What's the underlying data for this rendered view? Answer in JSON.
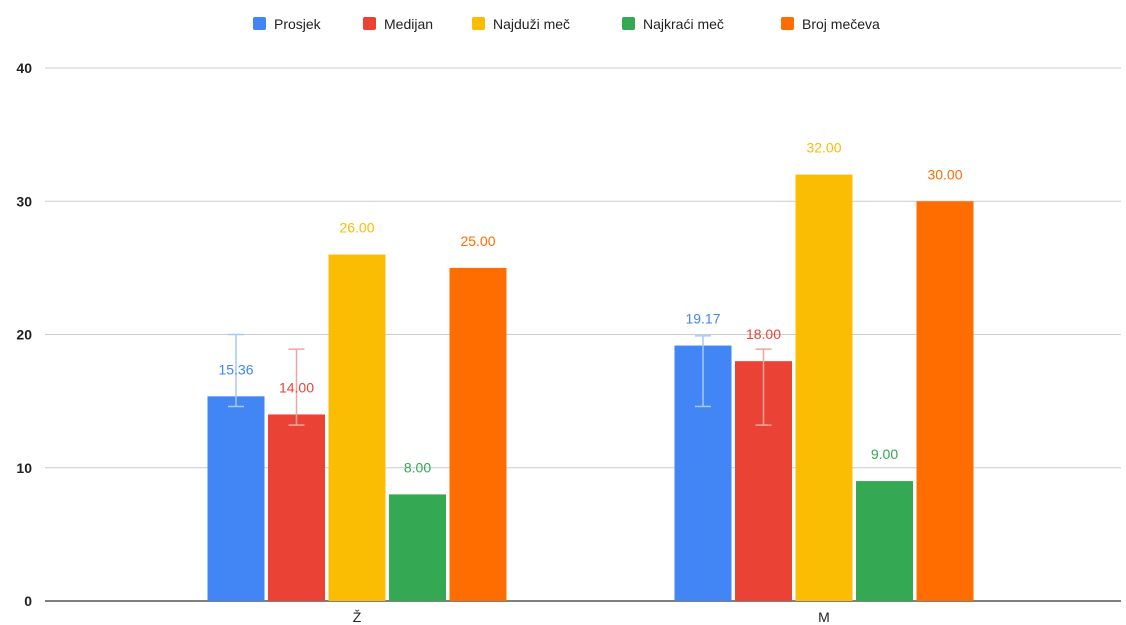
{
  "chart_data": {
    "type": "bar",
    "categories": [
      "Ž",
      "M"
    ],
    "series": [
      {
        "name": "Prosjek",
        "color": "#4285F4",
        "values": [
          15.36,
          19.17
        ],
        "labels": [
          "15.36",
          "19.17"
        ],
        "error_low": [
          14.6,
          14.6
        ],
        "error_high": [
          20.0,
          19.9
        ]
      },
      {
        "name": "Medijan",
        "color": "#EA4335",
        "values": [
          14.0,
          18.0
        ],
        "labels": [
          "14.00",
          "18.00"
        ],
        "error_low": [
          13.2,
          13.2
        ],
        "error_high": [
          18.9,
          18.9
        ]
      },
      {
        "name": "Najduži meč",
        "color": "#FBBC04",
        "values": [
          26.0,
          32.0
        ],
        "labels": [
          "26.00",
          "32.00"
        ]
      },
      {
        "name": "Najkraći meč",
        "color": "#34A853",
        "values": [
          8.0,
          9.0
        ],
        "labels": [
          "8.00",
          "9.00"
        ]
      },
      {
        "name": "Broj mečeva",
        "color": "#FF6D01",
        "values": [
          25.0,
          30.0
        ],
        "labels": [
          "25.00",
          "30.00"
        ]
      }
    ],
    "yticks": [
      "0",
      "10",
      "20",
      "30",
      "40"
    ],
    "ylim": [
      0,
      40
    ],
    "grid": true,
    "legend_position": "top"
  }
}
